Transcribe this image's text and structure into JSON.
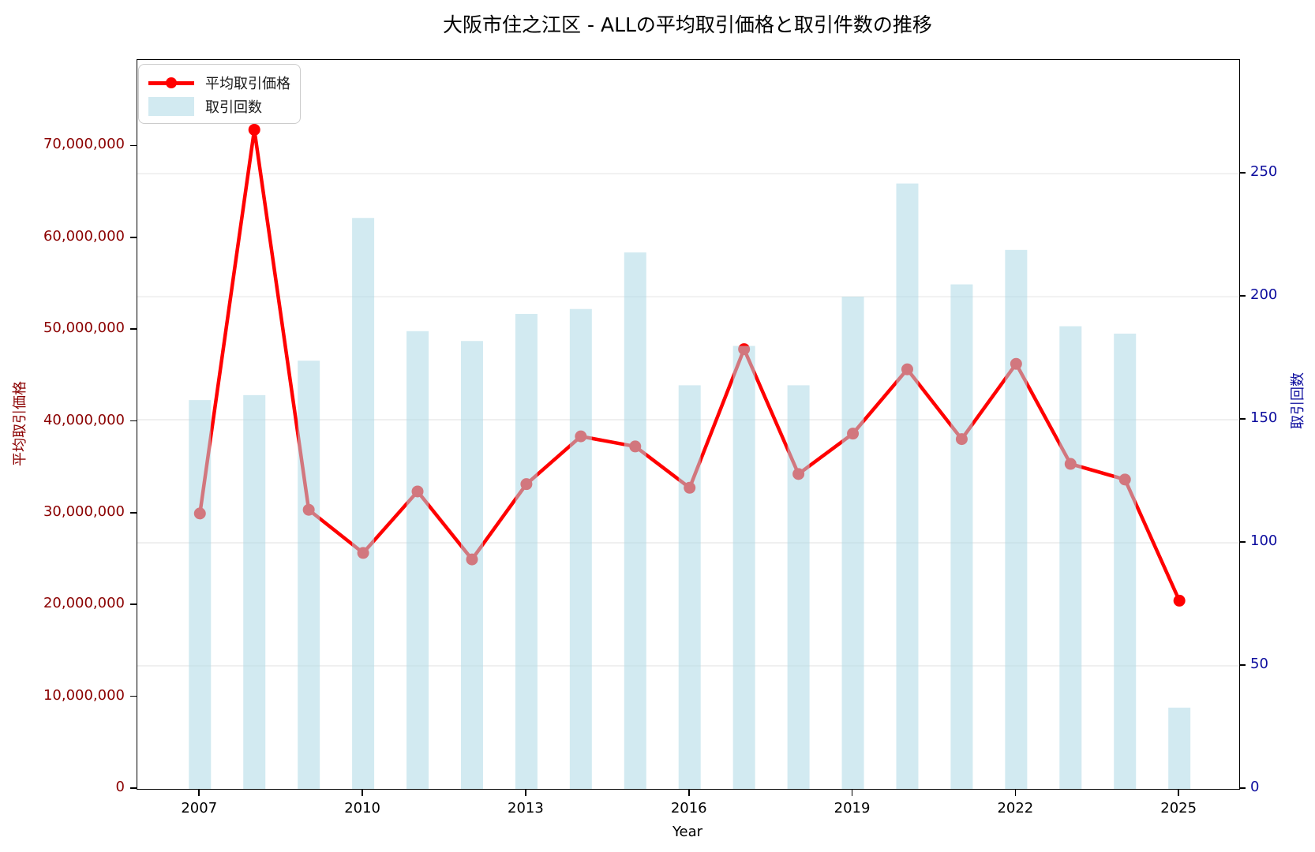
{
  "title": "大阪市住之江区 - ALLの平均取引価格と取引件数の推移",
  "legend": {
    "price_label": "平均取引価格",
    "count_label": "取引回数"
  },
  "colors": {
    "line": "#ff0000",
    "bar_fill": "rgba(173,216,230,0.55)",
    "left_axis_text": "#8b0000",
    "right_axis_text": "#0d0d9e",
    "grid": "#e8e8e8"
  },
  "chart_data": {
    "type": "line+bar dual axis",
    "title": "大阪市住之江区 - ALLの平均取引価格と取引件数の推移",
    "xlabel": "Year",
    "ylabel_left": "平均取引価格",
    "ylabel_right": "取引回数",
    "x": [
      2007,
      2008,
      2009,
      2010,
      2011,
      2012,
      2013,
      2014,
      2015,
      2016,
      2017,
      2018,
      2019,
      2020,
      2021,
      2022,
      2023,
      2024,
      2025
    ],
    "series": [
      {
        "name": "平均取引価格",
        "type": "line",
        "axis": "left",
        "color": "#ff0000",
        "values": [
          30000000,
          71800000,
          30400000,
          25700000,
          32400000,
          25000000,
          33200000,
          38400000,
          37300000,
          32800000,
          47900000,
          34300000,
          38700000,
          45700000,
          38100000,
          46300000,
          35400000,
          33700000,
          20500000
        ]
      },
      {
        "name": "取引回数",
        "type": "bar",
        "axis": "right",
        "color": "rgba(173,216,230,0.55)",
        "values": [
          158,
          160,
          174,
          232,
          186,
          182,
          193,
          195,
          218,
          164,
          180,
          164,
          200,
          246,
          205,
          219,
          188,
          185,
          33
        ]
      }
    ],
    "xticks": [
      2007,
      2010,
      2013,
      2016,
      2019,
      2022,
      2025
    ],
    "yticks_left": [
      0,
      10000000,
      20000000,
      30000000,
      40000000,
      50000000,
      60000000,
      70000000
    ],
    "yticks_right": [
      0,
      50,
      100,
      150,
      200,
      250
    ],
    "xlim": [
      2005.85,
      2026.1
    ],
    "ylim_left": [
      0,
      79400000
    ],
    "ylim_right": [
      0,
      296.2
    ],
    "grid": "horizontal, on right-axis ticks",
    "legend_position": "upper left"
  }
}
